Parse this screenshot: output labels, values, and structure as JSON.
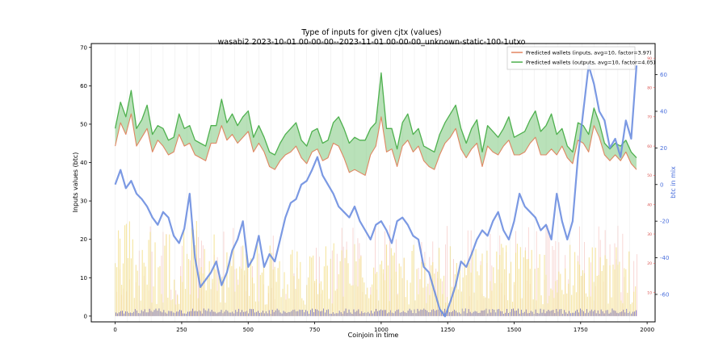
{
  "chart_data": {
    "type": "line",
    "title": "Type of inputs for given cjtx (values)",
    "subtitle": "wasabi2 2023-10-01 00-00-00--2023-11-01 00-00-00_unknown-static-100-1utxo",
    "xlabel": "Coinjoin in time",
    "ylabel": "Inputs values (btc)",
    "y2label": "btc in mix",
    "xlim": [
      -90,
      2030
    ],
    "ylim": [
      -1.5,
      71
    ],
    "y3lim": [
      0,
      95
    ],
    "y2lim": [
      -75,
      77
    ],
    "x_ticks": [
      0,
      250,
      500,
      750,
      1000,
      1250,
      1500,
      1750,
      2000
    ],
    "y_ticks": [
      0,
      10,
      20,
      30,
      40,
      50,
      60,
      70
    ],
    "y3_ticks": [
      10,
      20,
      30,
      40,
      50,
      60,
      70,
      80,
      90
    ],
    "y2_ticks": [
      -60,
      -40,
      -20,
      0,
      20,
      40,
      60
    ],
    "legend_position": "top-right",
    "colors": {
      "inputs": "#e07b54",
      "outputs": "#3faa3f",
      "fill": "#7fc97f",
      "mix": "#6d8ee0",
      "mix_axis": "#4a6fdc",
      "pred_axis": "#d9534f",
      "bars_yellow": "#f3df8a",
      "bars_pink": "#f4b9b5",
      "bars_blue": "#3b3bd6"
    },
    "series": [
      {
        "name": "Predicted wallets (inputs, avg=10, factor=3.97)",
        "axis": "right-inner",
        "x": [
          0,
          20,
          40,
          60,
          80,
          100,
          120,
          140,
          160,
          180,
          200,
          220,
          240,
          260,
          280,
          300,
          320,
          340,
          360,
          380,
          400,
          420,
          440,
          460,
          480,
          500,
          520,
          540,
          560,
          580,
          600,
          620,
          640,
          660,
          680,
          700,
          720,
          740,
          760,
          780,
          800,
          820,
          840,
          860,
          880,
          900,
          920,
          940,
          960,
          980,
          1000,
          1020,
          1040,
          1060,
          1080,
          1100,
          1120,
          1140,
          1160,
          1180,
          1200,
          1220,
          1240,
          1260,
          1280,
          1300,
          1320,
          1340,
          1360,
          1380,
          1400,
          1420,
          1440,
          1460,
          1480,
          1500,
          1520,
          1540,
          1560,
          1580,
          1600,
          1620,
          1640,
          1660,
          1680,
          1700,
          1720,
          1740,
          1760,
          1780,
          1800,
          1820,
          1840,
          1860,
          1880,
          1900,
          1920,
          1940,
          1960
        ],
        "values": [
          60,
          68,
          64,
          71,
          60,
          63,
          66,
          58,
          62,
          60,
          57,
          58,
          64,
          60,
          61,
          57,
          56,
          55,
          61,
          61,
          67,
          62,
          64,
          61,
          63,
          65,
          58,
          61,
          58,
          53,
          52,
          55,
          57,
          58,
          60,
          56,
          54,
          58,
          59,
          55,
          56,
          61,
          60,
          56,
          51,
          52,
          51,
          50,
          57,
          60,
          70,
          58,
          59,
          53,
          60,
          62,
          58,
          60,
          55,
          53,
          52,
          57,
          61,
          63,
          66,
          59,
          56,
          59,
          61,
          53,
          60,
          58,
          57,
          60,
          62,
          57,
          57,
          58,
          61,
          63,
          57,
          57,
          59,
          57,
          60,
          56,
          54,
          62,
          61,
          58,
          67,
          63,
          57,
          55,
          57,
          55,
          58,
          54,
          52
        ]
      },
      {
        "name": "Predicted wallets (outputs, avg=10, factor=4.05)",
        "axis": "right-inner",
        "x": [
          0,
          20,
          40,
          60,
          80,
          100,
          120,
          140,
          160,
          180,
          200,
          220,
          240,
          260,
          280,
          300,
          320,
          340,
          360,
          380,
          400,
          420,
          440,
          460,
          480,
          500,
          520,
          540,
          560,
          580,
          600,
          620,
          640,
          660,
          680,
          700,
          720,
          740,
          760,
          780,
          800,
          820,
          840,
          860,
          880,
          900,
          920,
          940,
          960,
          980,
          1000,
          1020,
          1040,
          1060,
          1080,
          1100,
          1120,
          1140,
          1160,
          1180,
          1200,
          1220,
          1240,
          1260,
          1280,
          1300,
          1320,
          1340,
          1360,
          1380,
          1400,
          1420,
          1440,
          1460,
          1480,
          1500,
          1520,
          1540,
          1560,
          1580,
          1600,
          1620,
          1640,
          1660,
          1680,
          1700,
          1720,
          1740,
          1760,
          1780,
          1800,
          1820,
          1840,
          1860,
          1880,
          1900,
          1920,
          1940,
          1960
        ],
        "values": [
          66,
          75,
          70,
          79,
          66,
          69,
          74,
          64,
          67,
          66,
          62,
          63,
          71,
          66,
          67,
          62,
          61,
          60,
          67,
          67,
          76,
          68,
          71,
          67,
          70,
          72,
          63,
          67,
          63,
          58,
          57,
          61,
          64,
          66,
          68,
          62,
          60,
          65,
          66,
          61,
          62,
          68,
          70,
          66,
          61,
          63,
          62,
          62,
          66,
          68,
          85,
          66,
          66,
          59,
          68,
          71,
          64,
          66,
          60,
          59,
          58,
          64,
          68,
          71,
          74,
          66,
          61,
          66,
          69,
          58,
          67,
          65,
          63,
          66,
          70,
          63,
          64,
          65,
          69,
          72,
          65,
          67,
          71,
          64,
          66,
          60,
          58,
          68,
          67,
          64,
          73,
          68,
          61,
          59,
          61,
          60,
          62,
          58,
          56
        ]
      },
      {
        "name": "btc in mix",
        "axis": "right-outer",
        "x": [
          0,
          20,
          40,
          60,
          80,
          100,
          120,
          140,
          160,
          180,
          200,
          220,
          240,
          260,
          280,
          300,
          320,
          340,
          360,
          380,
          400,
          420,
          440,
          460,
          480,
          500,
          520,
          540,
          560,
          580,
          600,
          620,
          640,
          660,
          680,
          700,
          720,
          740,
          760,
          780,
          800,
          820,
          840,
          860,
          880,
          900,
          920,
          940,
          960,
          980,
          1000,
          1020,
          1040,
          1060,
          1080,
          1100,
          1120,
          1140,
          1160,
          1180,
          1200,
          1220,
          1240,
          1260,
          1280,
          1300,
          1320,
          1340,
          1360,
          1380,
          1400,
          1420,
          1440,
          1460,
          1480,
          1500,
          1520,
          1540,
          1560,
          1580,
          1600,
          1620,
          1640,
          1660,
          1680,
          1700,
          1720,
          1740,
          1760,
          1780,
          1800,
          1820,
          1840,
          1860,
          1880,
          1900,
          1920,
          1940,
          1960
        ],
        "values": [
          0,
          8,
          -2,
          2,
          -5,
          -8,
          -12,
          -18,
          -22,
          -15,
          -18,
          -28,
          -32,
          -24,
          -5,
          -40,
          -56,
          -52,
          -48,
          -42,
          -55,
          -48,
          -36,
          -30,
          -20,
          -45,
          -40,
          -28,
          -45,
          -38,
          -42,
          -30,
          -18,
          -10,
          -8,
          0,
          2,
          8,
          15,
          5,
          0,
          -5,
          -12,
          -15,
          -18,
          -12,
          -20,
          -25,
          -30,
          -22,
          -20,
          -25,
          -32,
          -20,
          -18,
          -22,
          -28,
          -30,
          -45,
          -48,
          -58,
          -68,
          -72,
          -64,
          -55,
          -42,
          -45,
          -38,
          -30,
          -25,
          -28,
          -20,
          -15,
          -25,
          -30,
          -20,
          -5,
          -12,
          -15,
          -18,
          -25,
          -22,
          -30,
          -5,
          -20,
          -30,
          -20,
          15,
          40,
          65,
          55,
          40,
          35,
          20,
          25,
          15,
          35,
          25,
          65
        ]
      }
    ]
  }
}
